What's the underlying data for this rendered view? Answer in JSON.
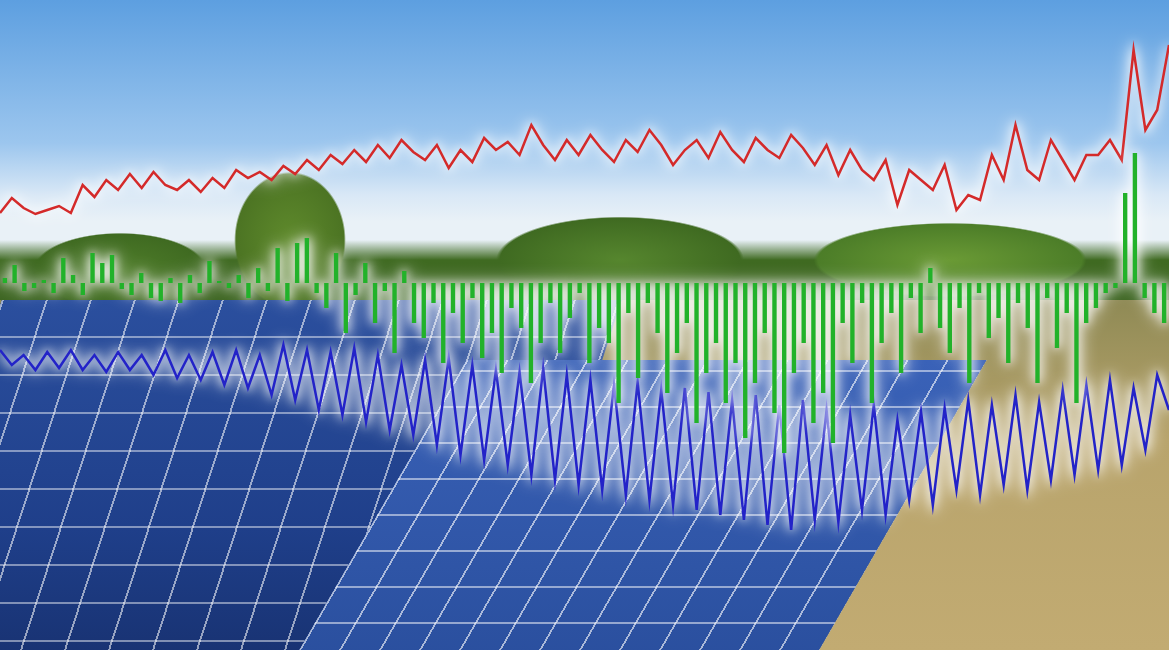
{
  "chart_data": [
    {
      "type": "line",
      "categories": [
        null,
        null,
        null,
        null,
        null,
        null,
        null,
        null,
        null,
        null,
        null,
        null,
        null,
        null,
        null,
        null,
        null,
        null,
        null,
        null,
        null,
        null,
        null,
        null,
        null,
        null,
        null,
        null,
        null,
        null,
        null,
        null,
        null,
        null,
        null,
        null,
        null,
        null,
        null,
        null,
        null,
        null,
        null,
        null,
        null,
        null,
        null,
        null,
        null,
        null,
        null,
        null,
        null,
        null,
        null,
        null,
        null,
        null,
        null,
        null,
        null,
        null,
        null,
        null,
        null,
        null,
        null,
        null,
        null,
        null,
        null,
        null,
        null,
        null,
        null,
        null,
        null,
        null,
        null,
        null,
        null,
        null,
        null,
        null,
        null,
        null,
        null,
        null,
        null,
        null,
        null,
        null,
        null,
        null,
        null,
        null,
        null,
        null,
        null,
        null
      ],
      "values": [
        437,
        452,
        442,
        436,
        440,
        444,
        437,
        465,
        453,
        470,
        460,
        476,
        462,
        478,
        465,
        460,
        470,
        458,
        472,
        462,
        480,
        472,
        478,
        470,
        484,
        476,
        490,
        480,
        495,
        486,
        500,
        488,
        505,
        492,
        510,
        498,
        490,
        505,
        482,
        500,
        488,
        512,
        500,
        508,
        495,
        525,
        505,
        490,
        510,
        495,
        515,
        500,
        488,
        510,
        498,
        520,
        505,
        485,
        500,
        510,
        492,
        518,
        500,
        488,
        512,
        500,
        492,
        515,
        502,
        485,
        505,
        475,
        500,
        480,
        470,
        490,
        445,
        480,
        470,
        460,
        485,
        440,
        455,
        450,
        495,
        470,
        525,
        480,
        470,
        510,
        490,
        470,
        495,
        495,
        510,
        490,
        600,
        520,
        540,
        605
      ],
      "color": "#d42a2a",
      "ylim": [
        0,
        650
      ],
      "grid": false,
      "tick_labels": false
    },
    {
      "type": "line",
      "categories": [
        null,
        null,
        null,
        null,
        null,
        null,
        null,
        null,
        null,
        null,
        null,
        null,
        null,
        null,
        null,
        null,
        null,
        null,
        null,
        null,
        null,
        null,
        null,
        null,
        null,
        null,
        null,
        null,
        null,
        null,
        null,
        null,
        null,
        null,
        null,
        null,
        null,
        null,
        null,
        null,
        null,
        null,
        null,
        null,
        null,
        null,
        null,
        null,
        null,
        null,
        null,
        null,
        null,
        null,
        null,
        null,
        null,
        null,
        null,
        null,
        null,
        null,
        null,
        null,
        null,
        null,
        null,
        null,
        null,
        null,
        null,
        null,
        null,
        null,
        null,
        null,
        null,
        null,
        null,
        null,
        null,
        null,
        null,
        null,
        null,
        null,
        null,
        null,
        null,
        null,
        null,
        null,
        null,
        null,
        null,
        null,
        null,
        null,
        null,
        null
      ],
      "values": [
        300,
        285,
        295,
        280,
        298,
        282,
        300,
        280,
        295,
        278,
        298,
        280,
        295,
        275,
        300,
        272,
        295,
        270,
        298,
        265,
        300,
        262,
        295,
        255,
        305,
        250,
        300,
        240,
        298,
        235,
        302,
        228,
        295,
        220,
        285,
        215,
        290,
        205,
        292,
        195,
        285,
        190,
        280,
        185,
        278,
        175,
        282,
        170,
        275,
        165,
        270,
        160,
        265,
        155,
        268,
        150,
        260,
        145,
        262,
        140,
        258,
        135,
        250,
        130,
        255,
        125,
        245,
        120,
        250,
        130,
        240,
        128,
        235,
        140,
        245,
        135,
        230,
        150,
        238,
        145,
        242,
        160,
        250,
        155,
        245,
        165,
        255,
        160,
        248,
        170,
        260,
        175,
        265,
        180,
        270,
        185,
        262,
        200,
        275,
        240
      ],
      "color": "#2323c8",
      "ylim": [
        0,
        650
      ],
      "grid": false,
      "tick_labels": false
    },
    {
      "type": "bar",
      "categories": [
        null,
        null,
        null,
        null,
        null,
        null,
        null,
        null,
        null,
        null,
        null,
        null,
        null,
        null,
        null,
        null,
        null,
        null,
        null,
        null,
        null,
        null,
        null,
        null,
        null,
        null,
        null,
        null,
        null,
        null,
        null,
        null,
        null,
        null,
        null,
        null,
        null,
        null,
        null,
        null,
        null,
        null,
        null,
        null,
        null,
        null,
        null,
        null,
        null,
        null,
        null,
        null,
        null,
        null,
        null,
        null,
        null,
        null,
        null,
        null,
        null,
        null,
        null,
        null,
        null,
        null,
        null,
        null,
        null,
        null,
        null,
        null,
        null,
        null,
        null,
        null,
        null,
        null,
        null,
        null,
        null,
        null,
        null,
        null,
        null,
        null,
        null,
        null,
        null,
        null,
        null,
        null,
        null,
        null,
        null,
        null,
        null,
        null,
        null,
        null,
        null,
        null,
        null,
        null,
        null,
        null,
        null,
        null,
        null,
        null,
        null,
        null,
        null,
        null,
        null,
        null,
        null,
        null,
        null,
        null
      ],
      "values": [
        5,
        18,
        -8,
        -5,
        3,
        -10,
        25,
        8,
        -12,
        30,
        20,
        28,
        -6,
        -12,
        10,
        -15,
        -18,
        5,
        -20,
        8,
        -10,
        22,
        2,
        -5,
        8,
        -15,
        15,
        -8,
        35,
        -18,
        40,
        45,
        -10,
        -25,
        30,
        -50,
        -12,
        20,
        -40,
        -8,
        -70,
        12,
        -40,
        -55,
        -20,
        -80,
        -30,
        -60,
        -15,
        -75,
        -50,
        -90,
        -25,
        -45,
        -100,
        -60,
        -20,
        -70,
        -35,
        -10,
        -80,
        -45,
        -60,
        -120,
        -30,
        -95,
        -20,
        -50,
        -110,
        -70,
        -40,
        -140,
        -90,
        -60,
        -120,
        -80,
        -155,
        -100,
        -50,
        -130,
        -170,
        -90,
        -60,
        -140,
        -110,
        -160,
        -40,
        -80,
        -20,
        -120,
        -60,
        -30,
        -90,
        -15,
        -50,
        15,
        -45,
        -70,
        -25,
        -100,
        -10,
        -55,
        -35,
        -80,
        -20,
        -45,
        -100,
        -15,
        -65,
        -30,
        -120,
        -40,
        -25,
        -10,
        -5,
        90,
        130,
        -15,
        -30,
        -40
      ],
      "color": "#22b22a",
      "ylim": [
        -367,
        283
      ],
      "grid": false,
      "tick_labels": false
    }
  ]
}
